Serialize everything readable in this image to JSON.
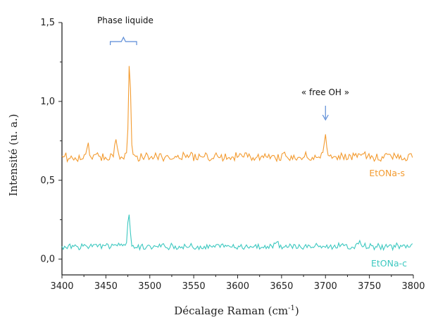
{
  "chart_data": {
    "type": "line",
    "xlabel_main": "Décalage Raman (cm",
    "xlabel_sup": "-1",
    "xlabel_close": ")",
    "ylabel": "Intensité (u. a.)",
    "xlim": [
      3400,
      3800
    ],
    "ylim": [
      -0.1,
      1.5
    ],
    "x_ticks": [
      "3400",
      "3450",
      "3500",
      "3550",
      "3600",
      "3650",
      "3700",
      "3750",
      "3800"
    ],
    "y_ticks": [
      "0,0",
      "0,5",
      "1,0",
      "1,5"
    ],
    "y_tick_values": [
      0.0,
      0.5,
      1.0,
      1.5
    ],
    "x_tick_values": [
      3400,
      3450,
      3500,
      3550,
      3600,
      3650,
      3700,
      3750,
      3800
    ],
    "series": [
      {
        "name": "EtONa-s",
        "color": "#F39B30",
        "baseline": 0.65,
        "noise": 0.025,
        "peaks": [
          {
            "x": 3430,
            "y": 0.72
          },
          {
            "x": 3461,
            "y": 0.76
          },
          {
            "x": 3477,
            "y": 1.27
          },
          {
            "x": 3700,
            "y": 0.8
          }
        ]
      },
      {
        "name": "EtONa-c",
        "color": "#3CC8C0",
        "baseline": 0.08,
        "noise": 0.018,
        "peaks": [
          {
            "x": 3458,
            "y": 0.11
          },
          {
            "x": 3476,
            "y": 0.31
          },
          {
            "x": 3645,
            "y": 0.12
          },
          {
            "x": 3740,
            "y": 0.11
          }
        ]
      }
    ],
    "annotations": {
      "phase_label": "Phase liquide",
      "free_oh_label": "« free OH »",
      "bracket_x_range": [
        3455,
        3485
      ],
      "arrow_x": 3700
    }
  }
}
